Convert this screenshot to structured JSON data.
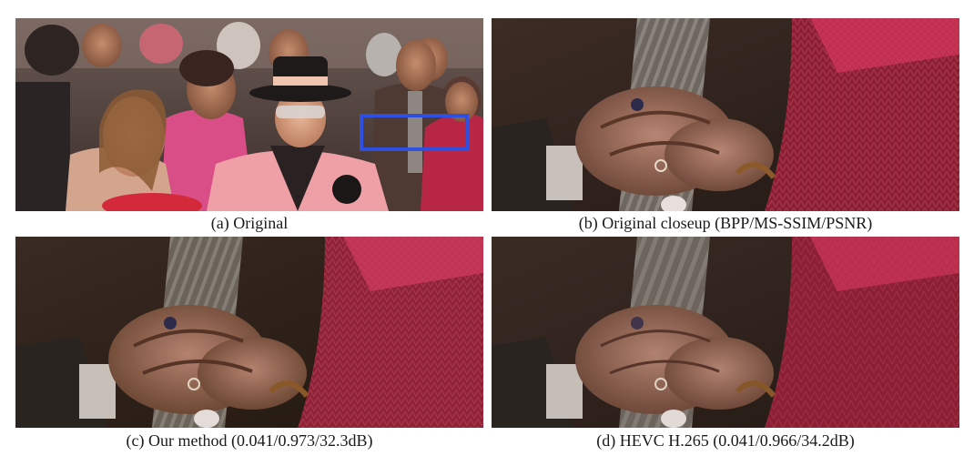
{
  "figure": {
    "panels": [
      {
        "id": "a",
        "caption": "(a) Original"
      },
      {
        "id": "b",
        "caption": "(b) Original closeup (BPP/MS-SSIM/PSNR)"
      },
      {
        "id": "c",
        "caption": "(c) Our method (0.041/0.973/32.3dB)"
      },
      {
        "id": "d",
        "caption": "(d) HEVC H.265 (0.041/0.966/34.2dB)"
      }
    ],
    "highlight_color": "#2f4fe0"
  }
}
